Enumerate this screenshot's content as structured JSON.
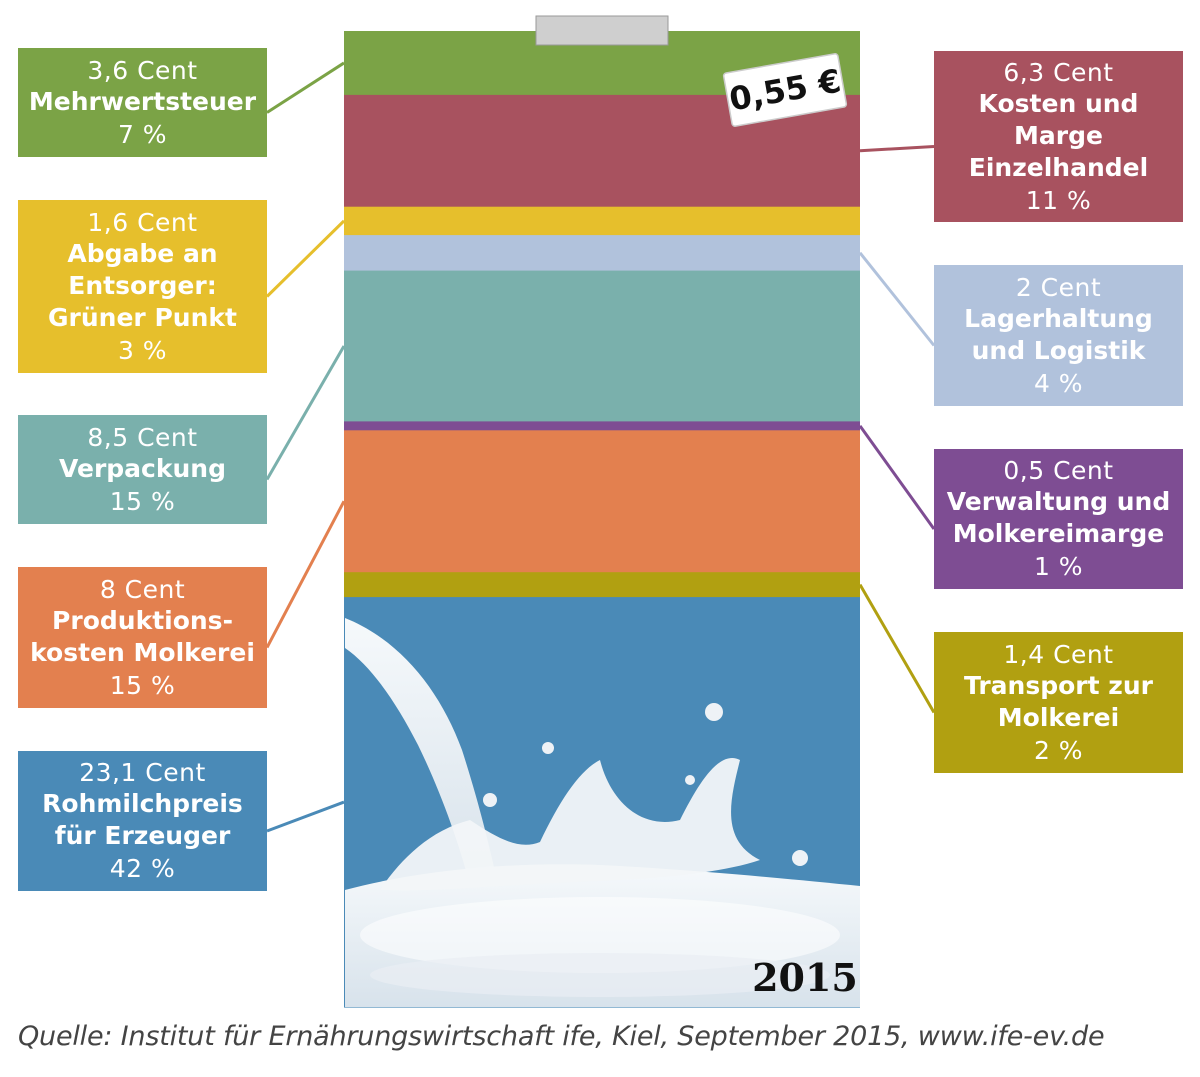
{
  "colors": {
    "Mehrwertsteuer": "#7ba346",
    "Kosten und Marge Einzelhandel": "#a8525f",
    "Abgabe an Entsorger: Grüner Punkt": "#e6bf2c",
    "Lagerhaltung und Logistik": "#b1c2dc",
    "Verpackung": "#7ab0ac",
    "Verwaltung und Molkereimarge": "#7e4d93",
    "Produktionskosten Molkerei": "#e3804f",
    "Transport zur Molkerei": "#b1a011",
    "Rohmilchpreis für Erzeuger": "#4a8ab7"
  },
  "price_tag": "0,55 €",
  "year": "2015",
  "source": "Quelle: Institut für Ernährungswirtschaft ife, Kiel, September 2015, www.ife-ev.de",
  "chart_data": {
    "type": "bar",
    "stacked": true,
    "total": "0,55 €",
    "categories": [
      "Mehrwertsteuer",
      "Kosten und Marge Einzelhandel",
      "Abgabe an Entsorger: Grüner Punkt",
      "Lagerhaltung und Logistik",
      "Verpackung",
      "Verwaltung und Molkereimarge",
      "Produktionskosten Molkerei",
      "Transport zur Molkerei",
      "Rohmilchpreis für Erzeuger"
    ],
    "values": [
      3.6,
      6.3,
      1.6,
      2,
      8.5,
      0.5,
      8,
      1.4,
      23.1
    ],
    "percent": [
      7,
      11,
      3,
      4,
      15,
      1,
      15,
      2,
      42
    ],
    "labels": [
      {
        "cent": "3,6 Cent",
        "name_lines": [
          "Mehrwertsteuer"
        ],
        "pct": "7 %"
      },
      {
        "cent": "6,3 Cent",
        "name_lines": [
          "Kosten und",
          "Marge",
          "Einzelhandel"
        ],
        "pct": "11 %"
      },
      {
        "cent": "1,6 Cent",
        "name_lines": [
          "Abgabe an",
          "Entsorger:",
          "Grüner Punkt"
        ],
        "pct": "3 %"
      },
      {
        "cent": "2 Cent",
        "name_lines": [
          "Lagerhaltung",
          "und Logistik"
        ],
        "pct": "4 %"
      },
      {
        "cent": "8,5 Cent",
        "name_lines": [
          "Verpackung"
        ],
        "pct": "15 %"
      },
      {
        "cent": "0,5 Cent",
        "name_lines": [
          "Verwaltung und",
          "Molkereimarge"
        ],
        "pct": "1 %"
      },
      {
        "cent": "8 Cent",
        "name_lines": [
          "Produktions-",
          "kosten Molkerei"
        ],
        "pct": "15 %"
      },
      {
        "cent": "1,4 Cent",
        "name_lines": [
          "Transport zur",
          "Molkerei"
        ],
        "pct": "2 %"
      },
      {
        "cent": "23,1 Cent",
        "name_lines": [
          "Rohmilchpreis",
          "für Erzeuger"
        ],
        "pct": "42 %"
      }
    ],
    "label_side": [
      "left",
      "right",
      "left",
      "right",
      "left",
      "right",
      "left",
      "right",
      "left"
    ]
  }
}
